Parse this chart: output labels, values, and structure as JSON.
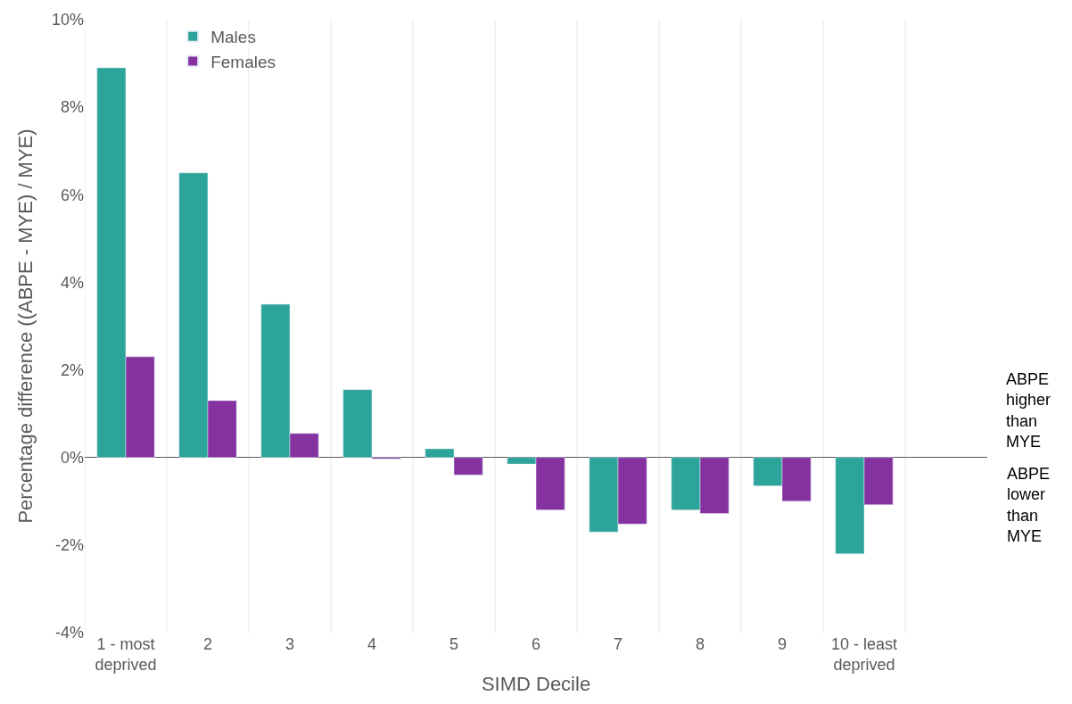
{
  "chart_data": {
    "type": "bar",
    "xlabel": "SIMD Decile",
    "ylabel": "Percentage difference ((ABPE - MYE) / MYE)",
    "categories": [
      "1 - most deprived",
      "2",
      "3",
      "4",
      "5",
      "6",
      "7",
      "8",
      "9",
      "10 - least deprived"
    ],
    "series": [
      {
        "name": "Males",
        "color": "#2ca49a",
        "values": [
          8.9,
          6.5,
          3.5,
          1.55,
          0.2,
          -0.15,
          -1.7,
          -1.2,
          -0.65,
          -2.2
        ]
      },
      {
        "name": "Females",
        "color": "#8532a0",
        "values": [
          2.3,
          1.3,
          0.55,
          -0.03,
          -0.4,
          -1.2,
          -1.52,
          -1.28,
          -1.0,
          -1.08
        ]
      }
    ],
    "ylim": [
      -4,
      10
    ],
    "yticks": [
      {
        "value": -4,
        "label": "-4%"
      },
      {
        "value": -2,
        "label": "-2%"
      },
      {
        "value": 0,
        "label": "0%"
      },
      {
        "value": 2,
        "label": "2%"
      },
      {
        "value": 4,
        "label": "4%"
      },
      {
        "value": 6,
        "label": "6%"
      },
      {
        "value": 8,
        "label": "8%"
      },
      {
        "value": 10,
        "label": "10%"
      }
    ],
    "grid": "x",
    "legend": "top left",
    "annotations": [
      "ABPE higher than MYE",
      "ABPE lower than MYE"
    ]
  }
}
